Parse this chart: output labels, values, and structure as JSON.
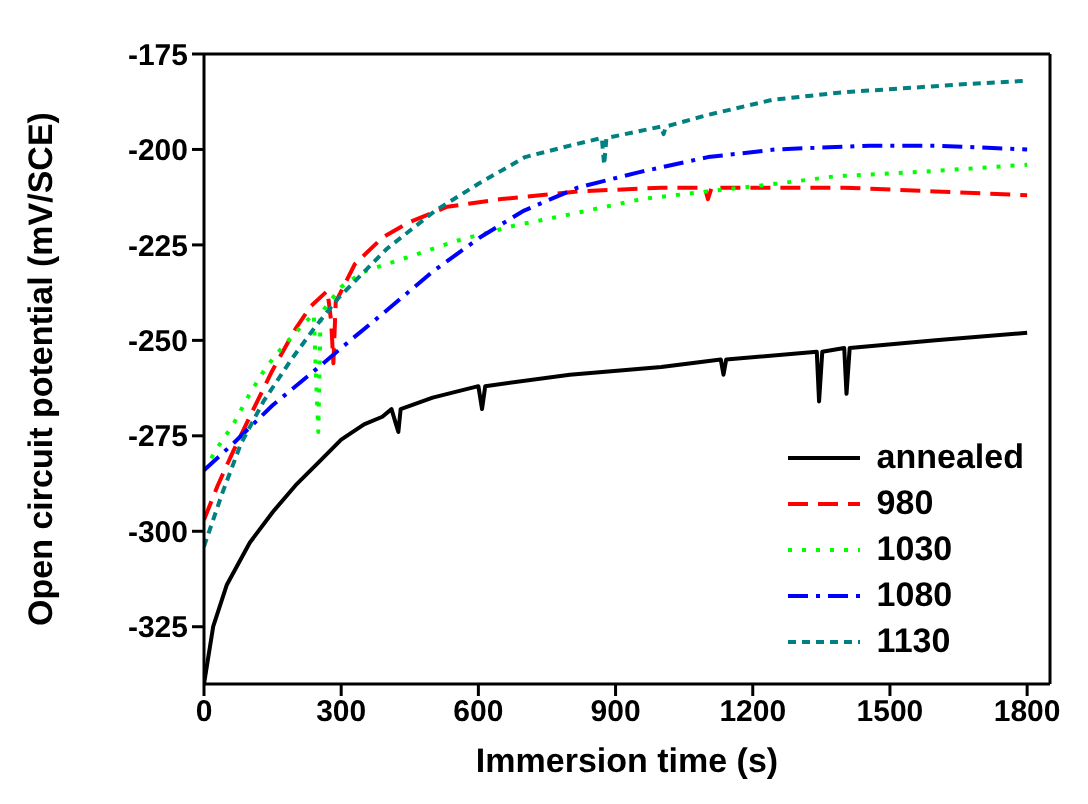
{
  "chart_data": {
    "type": "line",
    "xlabel": "Immersion time (s)",
    "ylabel": "Open circuit potential (mV/SCE)",
    "xlim": [
      0,
      1850
    ],
    "xticks": [
      0,
      300,
      600,
      900,
      1200,
      1500,
      1800
    ],
    "ylim": [
      -340,
      -175
    ],
    "yticks": [
      -325,
      -300,
      -275,
      -250,
      -225,
      -200,
      -175
    ],
    "legend": "bottom right",
    "marker": "none",
    "series": [
      {
        "name": "annealed",
        "color": "#000000",
        "line_style": "solid",
        "x": [
          0,
          20,
          50,
          100,
          150,
          200,
          250,
          300,
          350,
          390,
          410,
          420,
          425,
          430,
          500,
          600,
          608,
          615,
          800,
          1000,
          1130,
          1136,
          1142,
          1340,
          1345,
          1352,
          1400,
          1405,
          1412,
          1600,
          1800
        ],
        "values": [
          -340,
          -325,
          -314,
          -303,
          -295,
          -288,
          -282,
          -276,
          -272,
          -270,
          -268,
          -272,
          -274,
          -268,
          -265,
          -262,
          -268,
          -262,
          -259,
          -257,
          -255,
          -259,
          -255,
          -253,
          -266,
          -253,
          -252,
          -264,
          -252,
          -250,
          -248
        ]
      },
      {
        "name": "980",
        "color": "#ff0000",
        "line_style": "dashed",
        "x": [
          0,
          30,
          64,
          100,
          149,
          200,
          234,
          270,
          278,
          283,
          288,
          330,
          391,
          450,
          532,
          650,
          817,
          1000,
          1095,
          1102,
          1110,
          1243,
          1400,
          1600,
          1800
        ],
        "values": [
          -297,
          -288,
          -279,
          -270,
          -258,
          -247,
          -241,
          -237,
          -245,
          -256,
          -240,
          -230,
          -223,
          -219,
          -215,
          -213,
          -211,
          -210,
          -210,
          -213,
          -210,
          -210,
          -210,
          -211,
          -212
        ]
      },
      {
        "name": "1030",
        "color": "#00ff00",
        "line_style": "dotted",
        "x": [
          0,
          30,
          64,
          100,
          136,
          170,
          208,
          240,
          245,
          250,
          255,
          300,
          349,
          400,
          477,
          550,
          677,
          800,
          957,
          1100,
          1250,
          1383,
          1550,
          1800
        ],
        "values": [
          -284,
          -278,
          -272,
          -264,
          -257,
          -252,
          -247,
          -243,
          -260,
          -274,
          -243,
          -236,
          -232,
          -230,
          -227,
          -224,
          -220,
          -217,
          -213,
          -211,
          -209,
          -207,
          -206,
          -204
        ]
      },
      {
        "name": "1080",
        "color": "#0000ff",
        "line_style": "dashdot",
        "x": [
          0,
          64,
          150,
          251,
          320,
          391,
          500,
          604,
          700,
          817,
          950,
          1102,
          1250,
          1455,
          1600,
          1800
        ],
        "values": [
          -284,
          -277,
          -267,
          -257,
          -250,
          -243,
          -232,
          -223,
          -216,
          -210,
          -206,
          -202,
          -200,
          -199,
          -199,
          -200
        ]
      },
      {
        "name": "1130",
        "color": "#008080",
        "line_style": "shortdash",
        "x": [
          0,
          40,
          81,
          130,
          191,
          240,
          293,
          400,
          506,
          600,
          702,
          800,
          870,
          875,
          880,
          1000,
          1005,
          1010,
          1100,
          1243,
          1400,
          1528,
          1650,
          1800
        ],
        "values": [
          -304,
          -290,
          -277,
          -266,
          -255,
          -247,
          -239,
          -226,
          -216,
          -209,
          -202,
          -199,
          -197,
          -204,
          -197,
          -194,
          -196,
          -194,
          -191,
          -187,
          -185,
          -184,
          -183,
          -182
        ]
      }
    ]
  }
}
